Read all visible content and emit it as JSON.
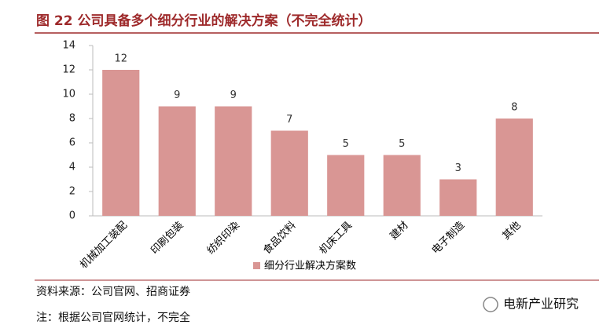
{
  "chart_data": {
    "type": "bar",
    "title": "图 22  公司具备多个细分行业的解决方案（不完全统计）",
    "categories": [
      "机械加工装配",
      "印刷包装",
      "纺织印染",
      "食品饮料",
      "机床工具",
      "建材",
      "电子制造",
      "其他"
    ],
    "series": [
      {
        "name": "细分行业解决方案数",
        "color": "#d99694",
        "values": [
          12,
          9,
          9,
          7,
          5,
          5,
          3,
          8
        ]
      }
    ],
    "ylim": [
      0,
      14
    ],
    "yticks": [
      0,
      2,
      4,
      6,
      8,
      10,
      12,
      14
    ],
    "grid": false,
    "source": "资料来源：公司官网、招商证券",
    "note": "注：根据公司官网统计，不完全",
    "watermark": "电新产业研究"
  }
}
